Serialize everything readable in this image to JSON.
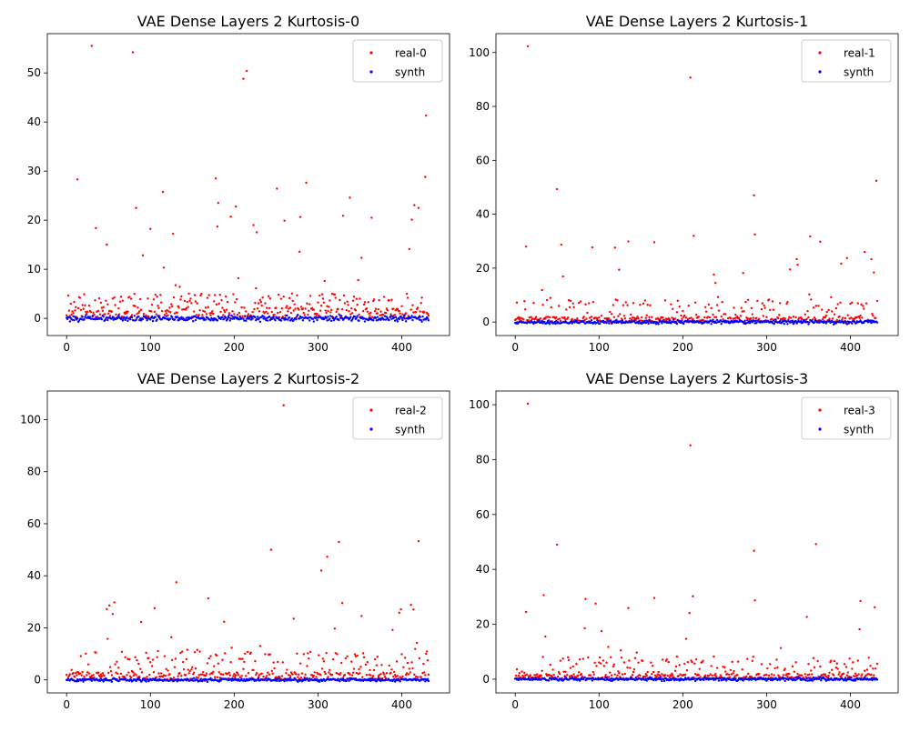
{
  "chart_data": [
    {
      "type": "scatter",
      "title": "VAE Dense Layers 2 Kurtosis-0",
      "xlabel": "",
      "ylabel": "",
      "xlim": [
        -23,
        457
      ],
      "ylim": [
        -3.5,
        58
      ],
      "xticks": [
        0,
        100,
        200,
        300,
        400
      ],
      "yticks": [
        0,
        10,
        20,
        30,
        40,
        50
      ],
      "grid": false,
      "legend_position": "top-right",
      "series": [
        {
          "name": "real-0",
          "color": "#ff0000",
          "kind": "real",
          "n": 433,
          "seed": 11,
          "base": 2.2,
          "tail": [
            4,
            28
          ],
          "spikes": [
            [
              30,
              55.5
            ],
            [
              79,
              54.2
            ],
            [
              211,
              48.8
            ],
            [
              215,
              50.4
            ],
            [
              429,
              41.3
            ],
            [
              13,
              28.3
            ],
            [
              178,
              28.5
            ],
            [
              428,
              28.8
            ],
            [
              420,
              22.5
            ],
            [
              196,
              20.7
            ],
            [
              330,
              20.9
            ],
            [
              364,
              20.5
            ],
            [
              35,
              18.4
            ],
            [
              180,
              18.7
            ],
            [
              223,
              19.0
            ],
            [
              260,
              19.9
            ],
            [
              412,
              20.1
            ]
          ]
        },
        {
          "name": "synth",
          "color": "#0000ff",
          "kind": "synth",
          "n": 433,
          "seed": 101,
          "spread": 0.55
        }
      ]
    },
    {
      "type": "scatter",
      "title": "VAE Dense Layers 2 Kurtosis-1",
      "xlabel": "",
      "ylabel": "",
      "xlim": [
        -23,
        457
      ],
      "ylim": [
        -5,
        107
      ],
      "xticks": [
        0,
        100,
        200,
        300,
        400
      ],
      "yticks": [
        0,
        20,
        40,
        60,
        80,
        100
      ],
      "grid": false,
      "legend_position": "top-right",
      "series": [
        {
          "name": "real-1",
          "color": "#ff0000",
          "kind": "real",
          "n": 433,
          "seed": 23,
          "base": 2.0,
          "tail": [
            6,
            30
          ],
          "spikes": [
            [
              15,
              102.3
            ],
            [
              209,
              90.7
            ],
            [
              50,
              49.3
            ],
            [
              285,
              47.0
            ],
            [
              431,
              52.4
            ],
            [
              286,
              32.5
            ],
            [
              213,
              32.0
            ],
            [
              352,
              31.8
            ],
            [
              135,
              29.9
            ],
            [
              166,
              29.6
            ],
            [
              55,
              28.7
            ],
            [
              13,
              28.0
            ],
            [
              119,
              27.6
            ]
          ]
        },
        {
          "name": "synth",
          "color": "#0000ff",
          "kind": "synth",
          "n": 433,
          "seed": 202,
          "spread": 0.7
        }
      ]
    },
    {
      "type": "scatter",
      "title": "VAE Dense Layers 2 Kurtosis-2",
      "xlabel": "",
      "ylabel": "",
      "xlim": [
        -23,
        457
      ],
      "ylim": [
        -5,
        111
      ],
      "xticks": [
        0,
        100,
        200,
        300,
        400
      ],
      "yticks": [
        0,
        20,
        40,
        60,
        80,
        100
      ],
      "grid": false,
      "legend_position": "top-right",
      "series": [
        {
          "name": "real-2",
          "color": "#ff0000",
          "kind": "real",
          "n": 433,
          "seed": 37,
          "base": 3.0,
          "tail": [
            8,
            30
          ],
          "spikes": [
            [
              259,
              105.5
            ],
            [
              420,
              53.3
            ],
            [
              325,
              53.0
            ],
            [
              244,
              50.0
            ],
            [
              311,
              47.3
            ],
            [
              304,
              42.0
            ],
            [
              131,
              37.5
            ],
            [
              169,
              31.3
            ],
            [
              329,
              29.5
            ],
            [
              51,
              28.6
            ],
            [
              48,
              27.2
            ],
            [
              411,
              28.8
            ],
            [
              399,
              27.1
            ]
          ]
        },
        {
          "name": "synth",
          "color": "#0000ff",
          "kind": "synth",
          "n": 433,
          "seed": 303,
          "spread": 0.6
        }
      ]
    },
    {
      "type": "scatter",
      "title": "VAE Dense Layers 2 Kurtosis-3",
      "xlabel": "",
      "ylabel": "",
      "xlim": [
        -23,
        457
      ],
      "ylim": [
        -5,
        105
      ],
      "xticks": [
        0,
        100,
        200,
        300,
        400
      ],
      "yticks": [
        0,
        20,
        40,
        60,
        80,
        100
      ],
      "grid": false,
      "legend_position": "top-right",
      "series": [
        {
          "name": "real-3",
          "color": "#ff0000",
          "kind": "real",
          "n": 433,
          "seed": 53,
          "base": 2.0,
          "tail": [
            6,
            30
          ],
          "spikes": [
            [
              15,
              100.4
            ],
            [
              209,
              85.2
            ],
            [
              50,
              49.0
            ],
            [
              359,
              49.2
            ],
            [
              285,
              46.8
            ],
            [
              34,
              30.6
            ],
            [
              212,
              30.2
            ],
            [
              166,
              29.6
            ],
            [
              286,
              28.7
            ],
            [
              412,
              28.5
            ],
            [
              429,
              26.2
            ],
            [
              135,
              25.9
            ],
            [
              13,
              24.5
            ]
          ]
        },
        {
          "name": "synth",
          "color": "#0000ff",
          "kind": "synth",
          "n": 433,
          "seed": 404,
          "spread": 0.6
        }
      ]
    }
  ]
}
